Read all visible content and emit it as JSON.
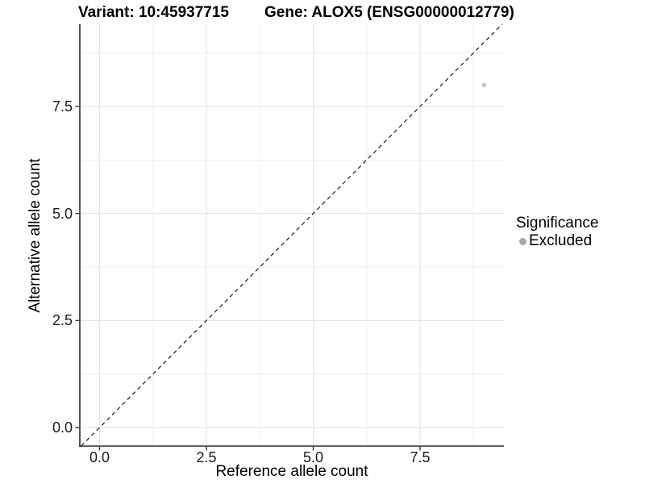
{
  "titles": {
    "variant": "Variant: 10:45937715",
    "gene": "Gene: ALOX5 (ENSG00000012779)"
  },
  "axes": {
    "x_label": "Reference allele count",
    "y_label": "Alternative allele count",
    "x_tick_labels": [
      "0.0",
      "2.5",
      "5.0",
      "7.5"
    ],
    "y_tick_labels": [
      "0.0",
      "2.5",
      "5.0",
      "7.5"
    ]
  },
  "legend": {
    "title": "Significance",
    "items": [
      {
        "label": "Excluded",
        "color": "#a8a8a8"
      }
    ]
  },
  "colors": {
    "point": "#c3c3c3",
    "grid_major": "#e3e3e3",
    "grid_minor": "#ededed",
    "axis_line": "#2b2b2b",
    "tick_mark": "#333333",
    "dashed_line": "#1a1a1a"
  },
  "chart_data": {
    "type": "scatter",
    "title": "Variant: 10:45937715 | Gene: ALOX5 (ENSG00000012779)",
    "xlabel": "Reference allele count",
    "ylabel": "Alternative allele count",
    "xlim": [
      -0.46,
      9.46
    ],
    "ylim": [
      -0.43,
      9.42
    ],
    "x_ticks": [
      0,
      2.5,
      5,
      7.5
    ],
    "y_ticks": [
      0,
      2.5,
      5,
      7.5
    ],
    "x_minor_ticks": [
      1.25,
      3.75,
      6.25,
      8.75
    ],
    "y_minor_ticks": [
      1.25,
      3.75,
      6.25,
      8.75
    ],
    "grid": true,
    "legend_position": "right",
    "series": [
      {
        "name": "Excluded",
        "points": [
          {
            "x": 9,
            "y": 8
          }
        ]
      }
    ],
    "reference_line": {
      "type": "identity",
      "slope": 1,
      "intercept": 0,
      "style": "dashed"
    }
  }
}
